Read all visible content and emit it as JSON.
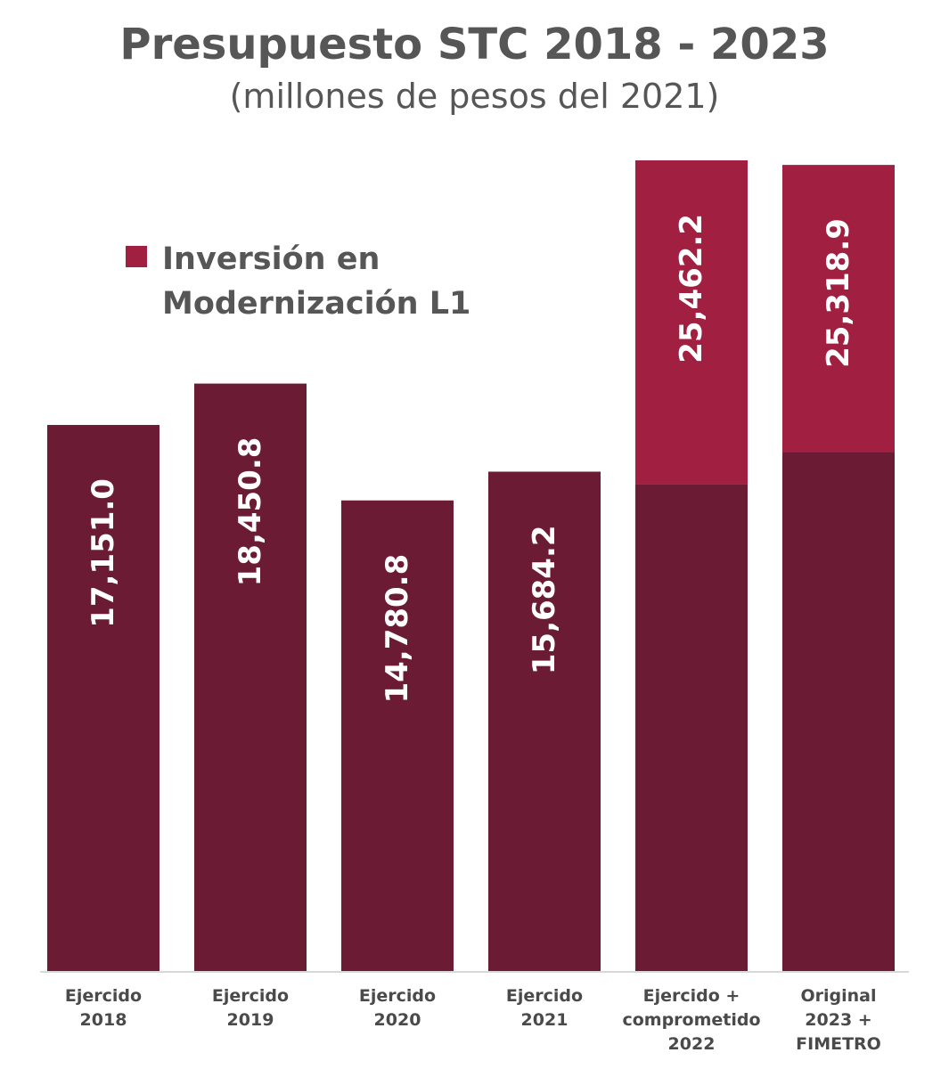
{
  "title": "Presupuesto STC 2018 - 2023",
  "subtitle": "(millones de pesos del 2021)",
  "colors": {
    "base": "#6b1b33",
    "inversion": "#a11f40",
    "axis": "#cccccc",
    "label_text": "#ffffff",
    "title_text": "#565656"
  },
  "chart_data": {
    "type": "bar",
    "stacked": true,
    "categories": [
      [
        "Ejercido",
        "2018"
      ],
      [
        "Ejercido",
        "2019"
      ],
      [
        "Ejercido",
        "2020"
      ],
      [
        "Ejercido",
        "2021"
      ],
      [
        "Ejercido +",
        "comprometido",
        "2022"
      ],
      [
        "Original",
        "2023 +",
        "FIMETRO"
      ]
    ],
    "totals": [
      17151.0,
      18450.8,
      14780.8,
      15684.2,
      25462.2,
      25318.9
    ],
    "value_labels": [
      "17,151.0",
      "18,450.8",
      "14,780.8",
      "15,684.2",
      "25,462.2",
      "25,318.9"
    ],
    "series": [
      {
        "values": [
          17151.0,
          18450.8,
          14780.8,
          15684.2,
          15300,
          16300
        ]
      },
      {
        "name": "Inversión en Modernización L1",
        "values": [
          0,
          0,
          0,
          0,
          10162.2,
          9018.9
        ]
      }
    ],
    "legend": {
      "label_lines": [
        "Inversión en",
        "Modernización L1"
      ],
      "placement": "top-left"
    },
    "ylim": [
      0,
      25462.2
    ],
    "grid": false
  }
}
